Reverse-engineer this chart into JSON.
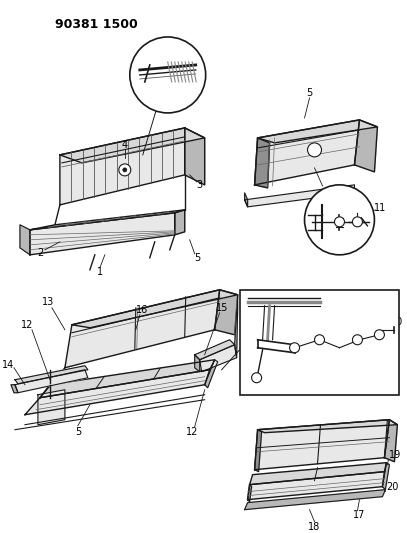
{
  "title": "90381 1500",
  "bg": "#ffffff",
  "lc": "#1a1a1a",
  "fig_w": 4.07,
  "fig_h": 5.33,
  "dpi": 100,
  "gray_light": "#d8d8d8",
  "gray_mid": "#b8b8b8",
  "gray_dark": "#909090",
  "gray_fill": "#e8e8e8"
}
